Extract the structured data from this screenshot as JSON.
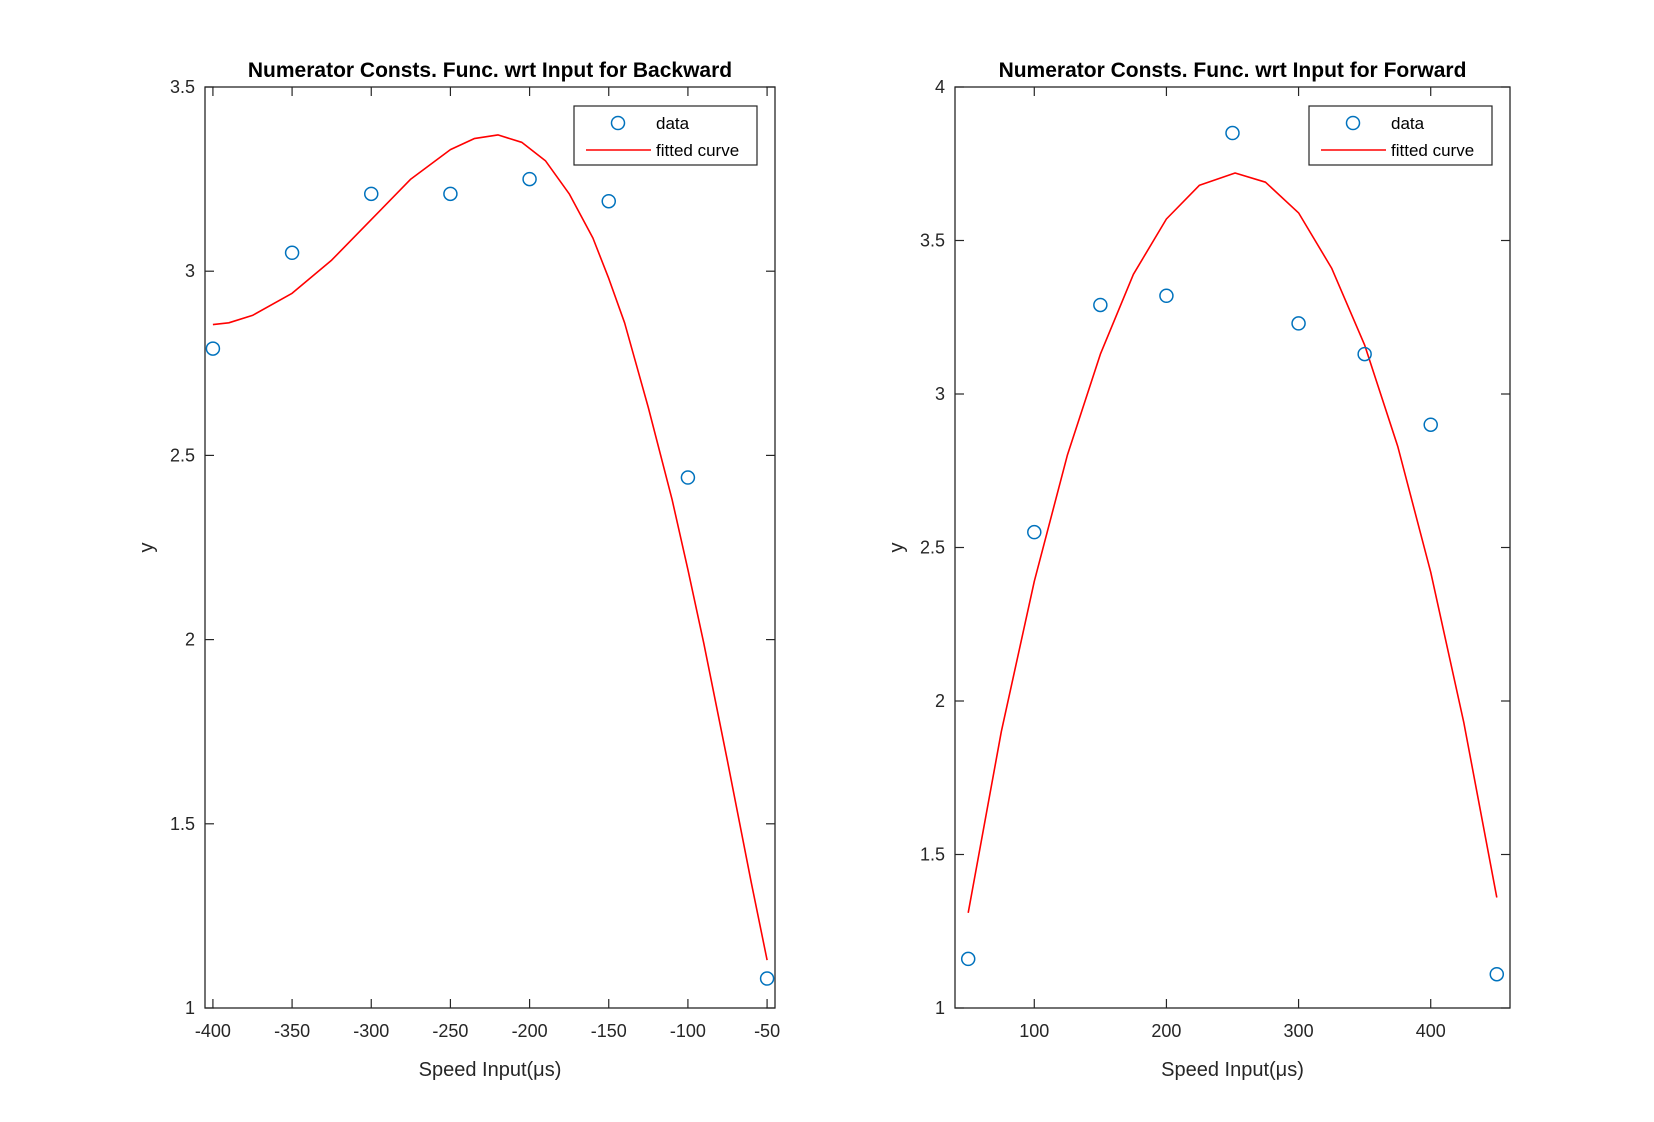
{
  "colors": {
    "data_marker": "#0072BD",
    "fitted_curve": "#FF0000",
    "axes": "#262626",
    "background": "#FFFFFF"
  },
  "chart_data": [
    {
      "type": "scatter",
      "title": "Numerator Consts. Func. wrt Input for Backward",
      "xlabel": "Speed Input(μs)",
      "ylabel": "y",
      "xlim": [
        -405,
        -45
      ],
      "ylim": [
        1,
        3.5
      ],
      "xticks": [
        -400,
        -350,
        -300,
        -250,
        -200,
        -150,
        -100,
        -50
      ],
      "xtick_labels": [
        "-400",
        "-350",
        "-300",
        "-250",
        "-200",
        "-150",
        "-100",
        "-50"
      ],
      "yticks": [
        1,
        1.5,
        2,
        2.5,
        3,
        3.5
      ],
      "ytick_labels": [
        "1",
        "1.5",
        "2",
        "2.5",
        "3",
        "3.5"
      ],
      "grid": false,
      "legend_position": "top-right",
      "legend": [
        "data",
        "fitted curve"
      ],
      "series": [
        {
          "name": "data",
          "style": "markers",
          "x": [
            -400,
            -350,
            -300,
            -250,
            -200,
            -150,
            -100,
            -50
          ],
          "y": [
            2.79,
            3.05,
            3.21,
            3.21,
            3.25,
            3.19,
            2.44,
            1.08
          ]
        },
        {
          "name": "fitted curve",
          "style": "line",
          "x": [
            -400,
            -390,
            -375,
            -350,
            -325,
            -300,
            -275,
            -250,
            -235,
            -220,
            -205,
            -190,
            -175,
            -160,
            -150,
            -140,
            -125,
            -110,
            -100,
            -90,
            -75,
            -60,
            -50
          ],
          "y": [
            2.855,
            2.86,
            2.88,
            2.94,
            3.03,
            3.14,
            3.25,
            3.33,
            3.36,
            3.37,
            3.35,
            3.3,
            3.21,
            3.09,
            2.98,
            2.86,
            2.63,
            2.38,
            2.19,
            1.99,
            1.67,
            1.34,
            1.13
          ]
        }
      ]
    },
    {
      "type": "scatter",
      "title": "Numerator Consts. Func. wrt Input for Forward",
      "xlabel": "Speed Input(μs)",
      "ylabel": "y",
      "xlim": [
        40,
        460
      ],
      "ylim": [
        1,
        4
      ],
      "xticks": [
        100,
        200,
        300,
        400
      ],
      "xtick_labels": [
        "100",
        "200",
        "300",
        "400"
      ],
      "yticks": [
        1,
        1.5,
        2,
        2.5,
        3,
        3.5,
        4
      ],
      "ytick_labels": [
        "1",
        "1.5",
        "2",
        "2.5",
        "3",
        "3.5",
        "4"
      ],
      "grid": false,
      "legend_position": "top-right",
      "legend": [
        "data",
        "fitted curve"
      ],
      "series": [
        {
          "name": "data",
          "style": "markers",
          "x": [
            50,
            100,
            150,
            200,
            250,
            300,
            350,
            400,
            450
          ],
          "y": [
            1.16,
            2.55,
            3.29,
            3.32,
            3.85,
            3.23,
            3.13,
            2.9,
            1.11
          ]
        },
        {
          "name": "fitted curve",
          "style": "line",
          "x": [
            50,
            75,
            100,
            125,
            150,
            175,
            200,
            225,
            252,
            275,
            300,
            325,
            350,
            375,
            400,
            425,
            450
          ],
          "y": [
            1.31,
            1.9,
            2.39,
            2.8,
            3.13,
            3.39,
            3.57,
            3.68,
            3.72,
            3.69,
            3.59,
            3.41,
            3.16,
            2.83,
            2.42,
            1.93,
            1.36
          ]
        }
      ]
    }
  ]
}
